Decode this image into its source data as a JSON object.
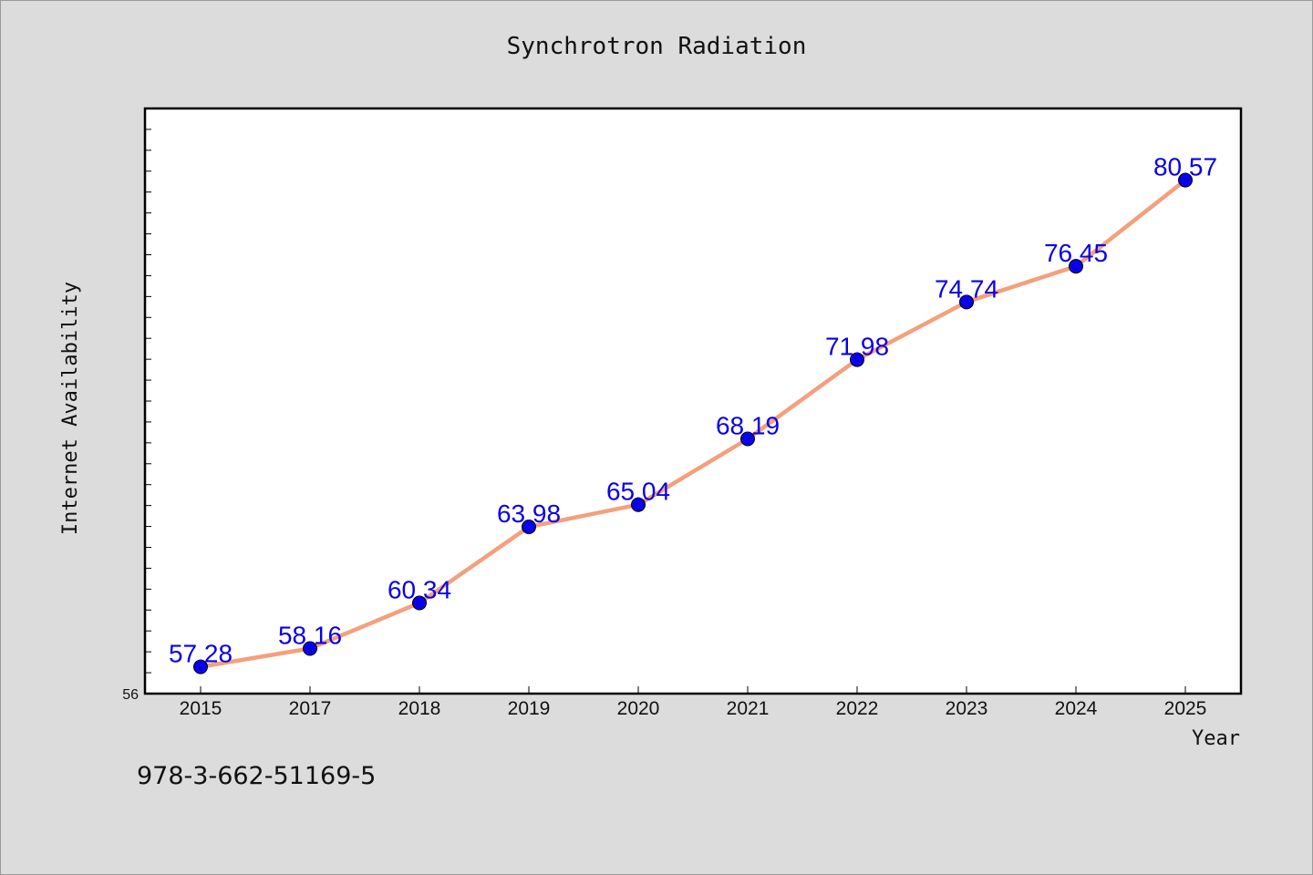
{
  "chart_data": {
    "type": "line",
    "title": "Synchrotron Radiation",
    "xlabel": "Year",
    "ylabel": "Internet Availability",
    "categories": [
      "2015",
      "2017",
      "2018",
      "2019",
      "2020",
      "2021",
      "2022",
      "2023",
      "2024",
      "2025"
    ],
    "series": [
      {
        "values": [
          57.28,
          58.16,
          60.34,
          63.98,
          65.04,
          68.19,
          71.98,
          74.74,
          76.45,
          80.57
        ]
      }
    ],
    "y_tick_labels": [
      "56"
    ],
    "ylim": [
      56,
      84
    ],
    "grid": false,
    "legend": "none",
    "data_labels": true,
    "colors": {
      "line": "#f4a07c",
      "marker": "#0a00e8",
      "data_label": "#0a00e8",
      "plot_background": "#ffffff",
      "figure_background": "#dcdcdc"
    }
  },
  "footer": {
    "code": "978-3-662-51169-5"
  }
}
